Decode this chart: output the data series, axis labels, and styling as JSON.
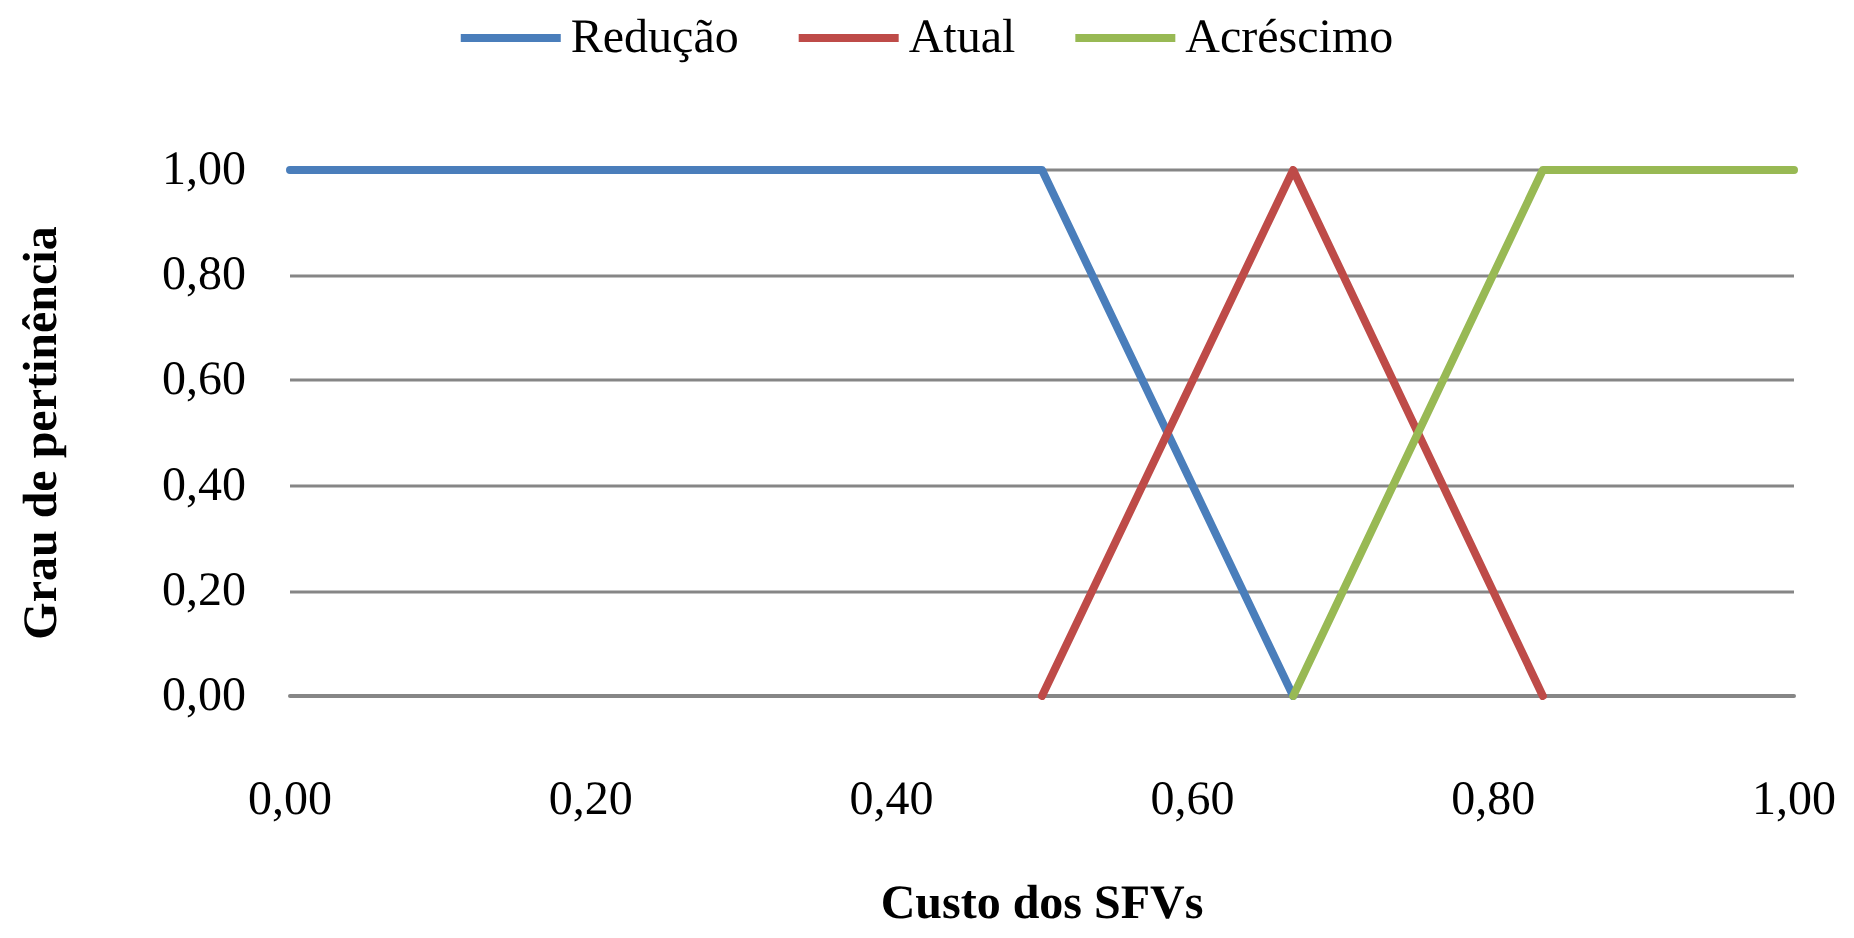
{
  "chart_data": {
    "type": "line",
    "xlabel": "Custo dos SFVs",
    "ylabel": "Grau de pertinência",
    "xlim": [
      0,
      1
    ],
    "ylim": [
      0,
      1
    ],
    "xticks": [
      {
        "value": 0,
        "label": "0,00"
      },
      {
        "value": 0.2,
        "label": "0,20"
      },
      {
        "value": 0.4,
        "label": "0,40"
      },
      {
        "value": 0.6,
        "label": "0,60"
      },
      {
        "value": 0.8,
        "label": "0,80"
      },
      {
        "value": 1,
        "label": "1,00"
      }
    ],
    "yticks": [
      {
        "value": 0,
        "label": "0,00"
      },
      {
        "value": 0.2,
        "label": "0,20"
      },
      {
        "value": 0.4,
        "label": "0,40"
      },
      {
        "value": 0.6,
        "label": "0,60"
      },
      {
        "value": 0.8,
        "label": "0,80"
      },
      {
        "value": 1,
        "label": "1,00"
      }
    ],
    "grid": "y",
    "legend": "top",
    "marker": "none",
    "line_style": "solid",
    "series": [
      {
        "name": "Redução",
        "color": "#4a7ebb",
        "x": [
          0,
          0.5,
          0.667
        ],
        "values": [
          1,
          1,
          0
        ]
      },
      {
        "name": "Atual",
        "color": "#be4b48",
        "x": [
          0.5,
          0.667,
          0.833
        ],
        "values": [
          0,
          1,
          0
        ]
      },
      {
        "name": "Acréscimo",
        "color": "#98b954",
        "x": [
          0.667,
          0.833,
          1
        ],
        "values": [
          0,
          1,
          1
        ]
      }
    ]
  }
}
